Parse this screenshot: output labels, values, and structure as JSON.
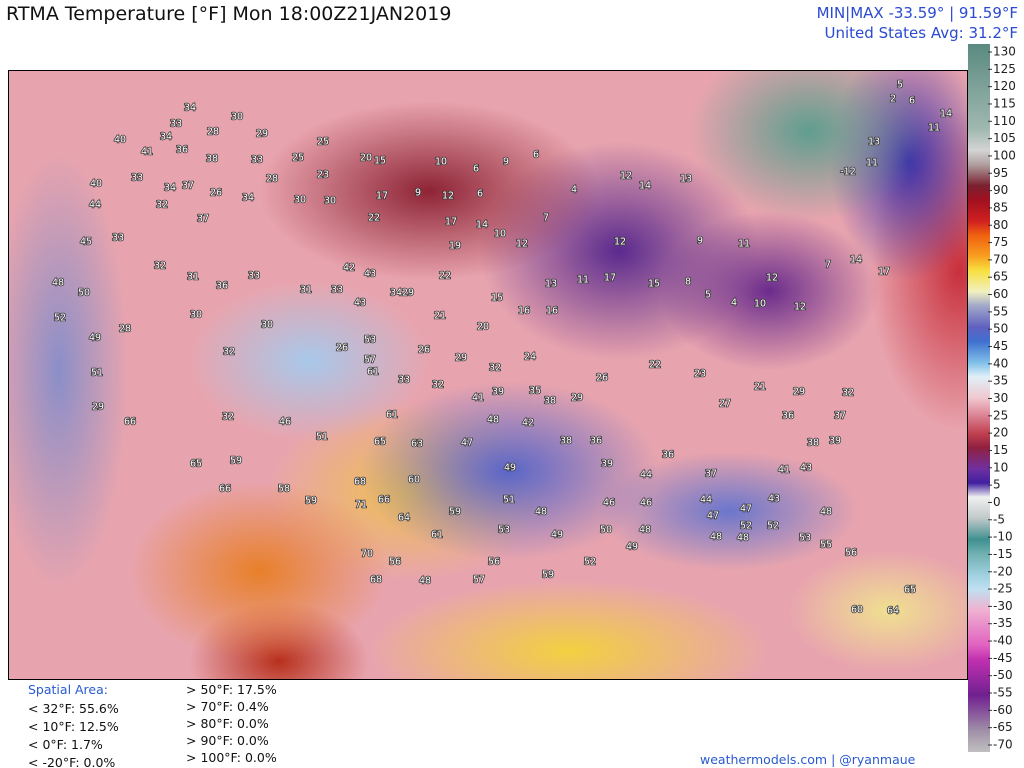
{
  "header": {
    "title": "RTMA Temperature [°F]  Mon 18:00Z21JAN2019",
    "minmax": "MIN|MAX -33.59°  |  91.59°F",
    "average": "United States Avg: 31.2°F"
  },
  "colorbar": {
    "ticks": [
      130,
      125,
      120,
      115,
      110,
      105,
      100,
      95,
      90,
      85,
      80,
      75,
      70,
      65,
      60,
      55,
      50,
      45,
      40,
      35,
      30,
      25,
      20,
      15,
      10,
      5,
      0,
      -5,
      -10,
      -15,
      -20,
      -25,
      -30,
      -35,
      -40,
      -45,
      -50,
      -55,
      -60,
      -65,
      -70
    ]
  },
  "stations": [
    34,
    33,
    34,
    28,
    30,
    29,
    40,
    41,
    36,
    38,
    33,
    40,
    33,
    34,
    37,
    26,
    34,
    28,
    25,
    25,
    23,
    20,
    15,
    10,
    6,
    9,
    6,
    17,
    9,
    12,
    6,
    44,
    32,
    37,
    30,
    30,
    22,
    17,
    14,
    10,
    12,
    19,
    7,
    4,
    12,
    14,
    13,
    12,
    9,
    11,
    33,
    45,
    48,
    50,
    52,
    49,
    51,
    32,
    31,
    36,
    33,
    31,
    33,
    42,
    43,
    43,
    34,
    29,
    21,
    20,
    15,
    22,
    16,
    16,
    13,
    11,
    17,
    15,
    8,
    5,
    4,
    10,
    12,
    12,
    7,
    14,
    17,
    28,
    30,
    32,
    30,
    26,
    53,
    57,
    61,
    33,
    26,
    29,
    32,
    24,
    32,
    41,
    39,
    35,
    38,
    29,
    26,
    22,
    29,
    66,
    65,
    59,
    66,
    32,
    46,
    51,
    61,
    65,
    63,
    60,
    68,
    66,
    71,
    64,
    59,
    61,
    58,
    59,
    70,
    56,
    68,
    48,
    47,
    48,
    42,
    49,
    51,
    48,
    53,
    49,
    56,
    57,
    59,
    38,
    36,
    39,
    36,
    44,
    46,
    46,
    50,
    48,
    49,
    52,
    44,
    47,
    37,
    47,
    43,
    41,
    43,
    48,
    52,
    52,
    53,
    55,
    56,
    48,
    48,
    23,
    27,
    21,
    29,
    32,
    36,
    37,
    38,
    39,
    65,
    64,
    60,
    5,
    2,
    6,
    11,
    14,
    13,
    11,
    -12
  ],
  "stats": {
    "title": "Spatial Area:",
    "below": [
      "< 32°F: 55.6%",
      "< 10°F: 12.5%",
      "< 0°F: 1.7%",
      "< -20°F: 0.0%"
    ],
    "above": [
      "> 50°F: 17.5%",
      "> 70°F: 0.4%",
      "> 80°F: 0.0%",
      "> 90°F: 0.0%",
      "> 100°F: 0.0%"
    ]
  },
  "footer": "weathermodels.com | @ryanmaue"
}
